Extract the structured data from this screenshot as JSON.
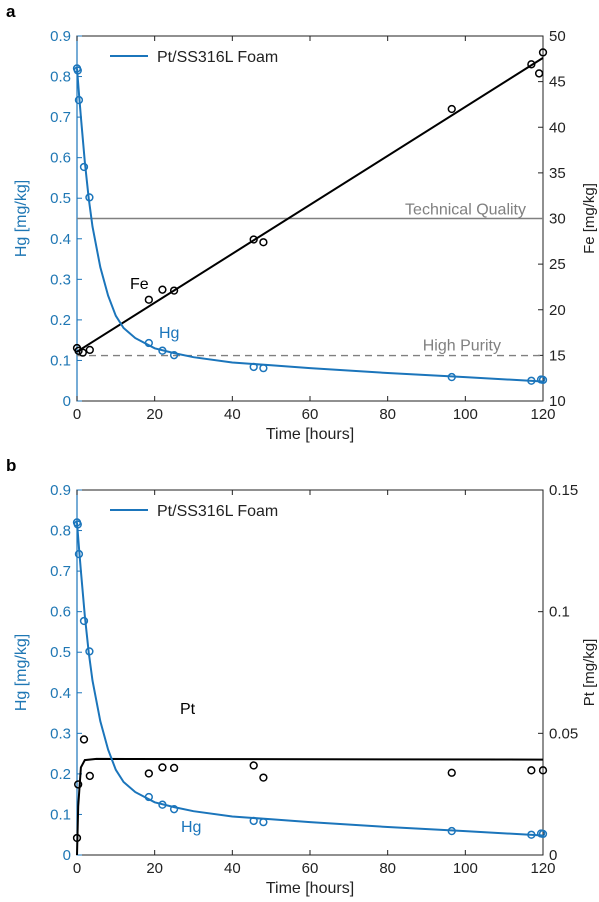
{
  "colors": {
    "hg": "#1b75bb",
    "fe": "#000000",
    "pt": "#000000",
    "ref": "#808080",
    "axis": "#222222"
  },
  "chart_data": [
    {
      "panel": "a",
      "type": "line",
      "legend": "Pt/SS316L Foam",
      "xlabel": "Time [hours]",
      "ylabel_left": "Hg [mg/kg]",
      "ylabel_right": "Fe [mg/kg]",
      "xlim": [
        0,
        120
      ],
      "ylim_left": [
        0,
        0.9
      ],
      "ylim_right": [
        10,
        50
      ],
      "xticks": [
        0,
        20,
        40,
        60,
        80,
        100,
        120
      ],
      "yticks_left": [
        0,
        0.1,
        0.2,
        0.3,
        0.4,
        0.5,
        0.6,
        0.7,
        0.8,
        0.9
      ],
      "yticks_right": [
        10,
        15,
        20,
        25,
        30,
        35,
        40,
        45,
        50
      ],
      "tick_labels_left": [
        "0",
        "0.1",
        "0.2",
        "0.3",
        "0.4",
        "0.5",
        "0.6",
        "0.7",
        "0.8",
        "0.9"
      ],
      "tick_labels_right": [
        "10",
        "15",
        "20",
        "25",
        "30",
        "35",
        "40",
        "45",
        "50"
      ],
      "tick_labels_x": [
        "0",
        "20",
        "40",
        "60",
        "80",
        "100",
        "120"
      ],
      "annotations": {
        "hg": "Hg",
        "fe": "Fe",
        "tech": "Technical Quality",
        "purity": "High Purity"
      },
      "reference_lines_left": {
        "technical_quality": 0.45,
        "high_purity": 0.112
      },
      "hg_points": [
        [
          0,
          0.82
        ],
        [
          0.2,
          0.815
        ],
        [
          0.5,
          0.742
        ],
        [
          1.8,
          0.577
        ],
        [
          3.2,
          0.502
        ],
        [
          18.5,
          0.143
        ],
        [
          22,
          0.124
        ],
        [
          25,
          0.113
        ],
        [
          45.5,
          0.084
        ],
        [
          48,
          0.081
        ],
        [
          96.5,
          0.059
        ],
        [
          117,
          0.05
        ],
        [
          119.5,
          0.053
        ],
        [
          120,
          0.052
        ]
      ],
      "hg_fit": [
        [
          0,
          0.82
        ],
        [
          0.5,
          0.76
        ],
        [
          1,
          0.7
        ],
        [
          2,
          0.59
        ],
        [
          3,
          0.5
        ],
        [
          4,
          0.43
        ],
        [
          6,
          0.33
        ],
        [
          8,
          0.26
        ],
        [
          10,
          0.21
        ],
        [
          12,
          0.18
        ],
        [
          15,
          0.155
        ],
        [
          20,
          0.13
        ],
        [
          25,
          0.118
        ],
        [
          30,
          0.108
        ],
        [
          40,
          0.095
        ],
        [
          50,
          0.088
        ],
        [
          60,
          0.081
        ],
        [
          80,
          0.069
        ],
        [
          100,
          0.059
        ],
        [
          120,
          0.048
        ]
      ],
      "fe_points": [
        [
          0,
          15.8
        ],
        [
          0.4,
          15.5
        ],
        [
          1.5,
          15.3
        ],
        [
          3.3,
          15.6
        ],
        [
          18.5,
          21.1
        ],
        [
          22,
          22.2
        ],
        [
          25,
          22.1
        ],
        [
          45.5,
          27.7
        ],
        [
          48,
          27.4
        ],
        [
          96.5,
          42
        ],
        [
          117,
          46.9
        ],
        [
          119,
          45.9
        ],
        [
          120,
          48.2
        ]
      ],
      "fe_fit": [
        [
          0,
          15.4
        ],
        [
          120,
          47.6
        ]
      ]
    },
    {
      "panel": "b",
      "type": "line",
      "legend": "Pt/SS316L Foam",
      "xlabel": "Time [hours]",
      "ylabel_left": "Hg [mg/kg]",
      "ylabel_right": "Pt [mg/kg]",
      "xlim": [
        0,
        120
      ],
      "ylim_left": [
        0,
        0.9
      ],
      "ylim_right": [
        0,
        0.15
      ],
      "xticks": [
        0,
        20,
        40,
        60,
        80,
        100,
        120
      ],
      "yticks_left": [
        0,
        0.1,
        0.2,
        0.3,
        0.4,
        0.5,
        0.6,
        0.7,
        0.8,
        0.9
      ],
      "yticks_right": [
        0,
        0.05,
        0.1,
        0.15
      ],
      "tick_labels_left": [
        "0",
        "0.1",
        "0.2",
        "0.3",
        "0.4",
        "0.5",
        "0.6",
        "0.7",
        "0.8",
        "0.9"
      ],
      "tick_labels_right": [
        "0",
        "0.05",
        "0.1",
        "0.15"
      ],
      "tick_labels_x": [
        "0",
        "20",
        "40",
        "60",
        "80",
        "100",
        "120"
      ],
      "annotations": {
        "hg": "Hg",
        "pt": "Pt"
      },
      "hg_points": [
        [
          0,
          0.82
        ],
        [
          0.2,
          0.815
        ],
        [
          0.5,
          0.742
        ],
        [
          1.8,
          0.577
        ],
        [
          3.2,
          0.502
        ],
        [
          18.5,
          0.143
        ],
        [
          22,
          0.124
        ],
        [
          25,
          0.113
        ],
        [
          45.5,
          0.084
        ],
        [
          48,
          0.081
        ],
        [
          96.5,
          0.059
        ],
        [
          117,
          0.05
        ],
        [
          119.5,
          0.053
        ],
        [
          120,
          0.052
        ]
      ],
      "hg_fit": [
        [
          0,
          0.82
        ],
        [
          0.5,
          0.76
        ],
        [
          1,
          0.7
        ],
        [
          2,
          0.59
        ],
        [
          3,
          0.5
        ],
        [
          4,
          0.43
        ],
        [
          6,
          0.33
        ],
        [
          8,
          0.26
        ],
        [
          10,
          0.21
        ],
        [
          12,
          0.18
        ],
        [
          15,
          0.155
        ],
        [
          20,
          0.13
        ],
        [
          25,
          0.118
        ],
        [
          30,
          0.108
        ],
        [
          40,
          0.095
        ],
        [
          50,
          0.088
        ],
        [
          60,
          0.081
        ],
        [
          80,
          0.069
        ],
        [
          100,
          0.059
        ],
        [
          120,
          0.048
        ]
      ],
      "pt_points": [
        [
          0,
          0.007
        ],
        [
          0.3,
          0.029
        ],
        [
          1.8,
          0.0475
        ],
        [
          3.3,
          0.0325
        ],
        [
          18.5,
          0.0335
        ],
        [
          22,
          0.036
        ],
        [
          25,
          0.0358
        ],
        [
          45.5,
          0.0368
        ],
        [
          48,
          0.0318
        ],
        [
          96.5,
          0.0338
        ],
        [
          117,
          0.0348
        ],
        [
          120,
          0.0348
        ]
      ],
      "pt_fit": [
        [
          0,
          0
        ],
        [
          0.3,
          0.02
        ],
        [
          1,
          0.036
        ],
        [
          2,
          0.039
        ],
        [
          5,
          0.0395
        ],
        [
          120,
          0.0392
        ]
      ]
    }
  ]
}
